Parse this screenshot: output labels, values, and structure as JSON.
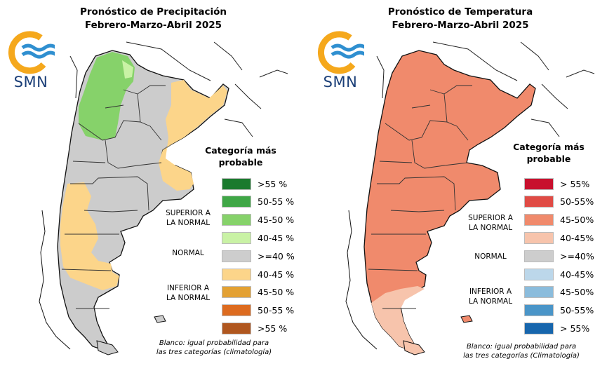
{
  "precipitation": {
    "title_line1": "Pronóstico de Precipitación",
    "title_line2": "Febrero-Marzo-Abril 2025",
    "logo_text": "SMN",
    "legend_title_line1": "Categoría más",
    "legend_title_line2": "probable",
    "group_superior_line1": "SUPERIOR A",
    "group_superior_line2": "LA NORMAL",
    "group_normal": "NORMAL",
    "group_inferior_line1": "INFERIOR A",
    "group_inferior_line2": "LA NORMAL",
    "legend": [
      {
        "label": ">55 %",
        "color": "#1a7a2e"
      },
      {
        "label": "50-55 %",
        "color": "#3fa746"
      },
      {
        "label": "45-50 %",
        "color": "#86d26a"
      },
      {
        "label": "40-45 %",
        "color": "#c9f2a5"
      },
      {
        "label": ">=40 %",
        "color": "#cdcdcd"
      },
      {
        "label": "40-45 %",
        "color": "#fcd58a"
      },
      {
        "label": "45-50 %",
        "color": "#e3a133"
      },
      {
        "label": "50-55 %",
        "color": "#dd6b1f"
      },
      {
        "label": ">55 %",
        "color": "#b0571f"
      }
    ],
    "note_line1": "Blanco: igual probabilidad para",
    "note_line2": "las tres categorías (climatología)"
  },
  "temperature": {
    "title_line1": "Pronóstico de Temperatura",
    "title_line2": "Febrero-Marzo-Abril 2025",
    "logo_text": "SMN",
    "legend_title_line1": "Categoría más",
    "legend_title_line2": "probable",
    "group_superior_line1": "SUPERIOR A",
    "group_superior_line2": "LA NORMAL",
    "group_normal": "NORMAL",
    "group_inferior_line1": "INFERIOR A",
    "group_inferior_line2": "LA NORMAL",
    "legend": [
      {
        "label": "> 55%",
        "color": "#c8102e"
      },
      {
        "label": "50-55%",
        "color": "#e04b45"
      },
      {
        "label": "45-50%",
        "color": "#f08a6c"
      },
      {
        "label": "40-45%",
        "color": "#f7c4ac"
      },
      {
        "label": ">=40%",
        "color": "#cdcdcd"
      },
      {
        "label": "40-45%",
        "color": "#bcd7ea"
      },
      {
        "label": "45-50%",
        "color": "#8bbcdc"
      },
      {
        "label": "50-55%",
        "color": "#4a95c8"
      },
      {
        "label": "> 55%",
        "color": "#1766ad"
      }
    ],
    "note_line1": "Blanco: igual probabilidad para",
    "note_line2": "las tres categorías (Climatología)"
  },
  "colors": {
    "logo_sun": "#f5a81c",
    "logo_waves": "#2f8fd0",
    "logo_text": "#1b3f78",
    "neighbor_fill": "#ffffff",
    "border_line": "#222222"
  }
}
